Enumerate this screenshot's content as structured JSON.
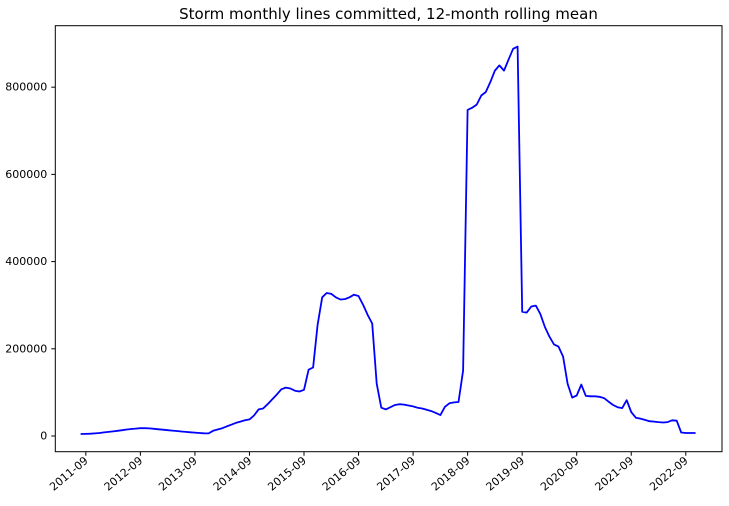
{
  "chart_data": {
    "type": "line",
    "title": "Storm monthly lines committed, 12-month rolling mean",
    "xlabel": "",
    "ylabel": "",
    "grid": false,
    "legend": "none",
    "background": "#ffffff",
    "axis_color": "#000000",
    "line_color": "#0000ff",
    "ylim": [
      -36000,
      941000
    ],
    "y_ticks": [
      0,
      200000,
      400000,
      600000,
      800000
    ],
    "y_tick_labels": [
      "0",
      "200000",
      "400000",
      "600000",
      "800000"
    ],
    "x_tick_labels": [
      "2011-09",
      "2012-09",
      "2013-09",
      "2014-09",
      "2015-09",
      "2016-09",
      "2017-09",
      "2018-09",
      "2019-09",
      "2020-09",
      "2021-09",
      "2022-09"
    ],
    "x": [
      "2011-08",
      "2011-09",
      "2011-10",
      "2011-11",
      "2011-12",
      "2012-01",
      "2012-02",
      "2012-03",
      "2012-04",
      "2012-05",
      "2012-06",
      "2012-07",
      "2012-08",
      "2012-09",
      "2012-10",
      "2012-11",
      "2012-12",
      "2013-01",
      "2013-02",
      "2013-03",
      "2013-04",
      "2013-05",
      "2013-06",
      "2013-07",
      "2013-08",
      "2013-09",
      "2013-10",
      "2013-11",
      "2013-12",
      "2014-01",
      "2014-02",
      "2014-03",
      "2014-04",
      "2014-05",
      "2014-06",
      "2014-07",
      "2014-08",
      "2014-09",
      "2014-10",
      "2014-11",
      "2014-12",
      "2015-01",
      "2015-02",
      "2015-03",
      "2015-04",
      "2015-05",
      "2015-06",
      "2015-07",
      "2015-08",
      "2015-09",
      "2015-10",
      "2015-11",
      "2015-12",
      "2016-01",
      "2016-02",
      "2016-03",
      "2016-04",
      "2016-05",
      "2016-06",
      "2016-07",
      "2016-08",
      "2016-09",
      "2016-10",
      "2016-11",
      "2016-12",
      "2017-01",
      "2017-02",
      "2017-03",
      "2017-04",
      "2017-05",
      "2017-06",
      "2017-07",
      "2017-08",
      "2017-09",
      "2017-10",
      "2017-11",
      "2017-12",
      "2018-01",
      "2018-02",
      "2018-03",
      "2018-04",
      "2018-05",
      "2018-06",
      "2018-07",
      "2018-08",
      "2018-09",
      "2018-10",
      "2018-11",
      "2018-12",
      "2019-01",
      "2019-02",
      "2019-03",
      "2019-04",
      "2019-05",
      "2019-06",
      "2019-07",
      "2019-08",
      "2019-09",
      "2019-10",
      "2019-11",
      "2019-12",
      "2020-01",
      "2020-02",
      "2020-03",
      "2020-04",
      "2020-05",
      "2020-06",
      "2020-07",
      "2020-08",
      "2020-09",
      "2020-10",
      "2020-11",
      "2020-12",
      "2021-01",
      "2021-02",
      "2021-03",
      "2021-04",
      "2021-05",
      "2021-06",
      "2021-07",
      "2021-08",
      "2021-09",
      "2021-10",
      "2021-11",
      "2021-12",
      "2022-01",
      "2022-02",
      "2022-03",
      "2022-04",
      "2022-05",
      "2022-06",
      "2022-07",
      "2022-08",
      "2022-09",
      "2022-10",
      "2022-11"
    ],
    "series": [
      {
        "name": "12-month rolling mean of lines committed",
        "color": "#0000ff",
        "values": [
          4500,
          4800,
          5300,
          6000,
          7000,
          8200,
          9400,
          10600,
          12000,
          13400,
          14800,
          16000,
          17000,
          17800,
          18000,
          17400,
          16500,
          15400,
          14400,
          13400,
          12400,
          11400,
          10400,
          9400,
          8500,
          7700,
          7000,
          6300,
          6000,
          12000,
          15000,
          18000,
          22000,
          26000,
          30000,
          33000,
          36000,
          38000,
          47000,
          61000,
          63000,
          73000,
          84000,
          95000,
          107000,
          111000,
          109000,
          104000,
          102000,
          106000,
          152000,
          157000,
          255000,
          318000,
          328000,
          326000,
          318000,
          313000,
          314000,
          318000,
          324000,
          321000,
          301000,
          278000,
          258000,
          120000,
          65000,
          61000,
          66000,
          71000,
          73000,
          72000,
          70000,
          68000,
          65000,
          63000,
          60000,
          57000,
          53000,
          48000,
          67000,
          75000,
          77000,
          78000,
          150000,
          748000,
          753000,
          760000,
          781000,
          789000,
          812000,
          838000,
          850000,
          838000,
          863000,
          888000,
          893000,
          285000,
          283000,
          297000,
          299000,
          280000,
          250000,
          228000,
          210000,
          205000,
          182000,
          120000,
          88000,
          93000,
          118000,
          92000,
          91000,
          91000,
          90000,
          87000,
          79000,
          71000,
          66000,
          64000,
          82000,
          55000,
          42000,
          40000,
          37000,
          34000,
          33000,
          32000,
          31000,
          32000,
          36000,
          35000,
          8000,
          7000,
          7000,
          7000
        ]
      }
    ]
  }
}
